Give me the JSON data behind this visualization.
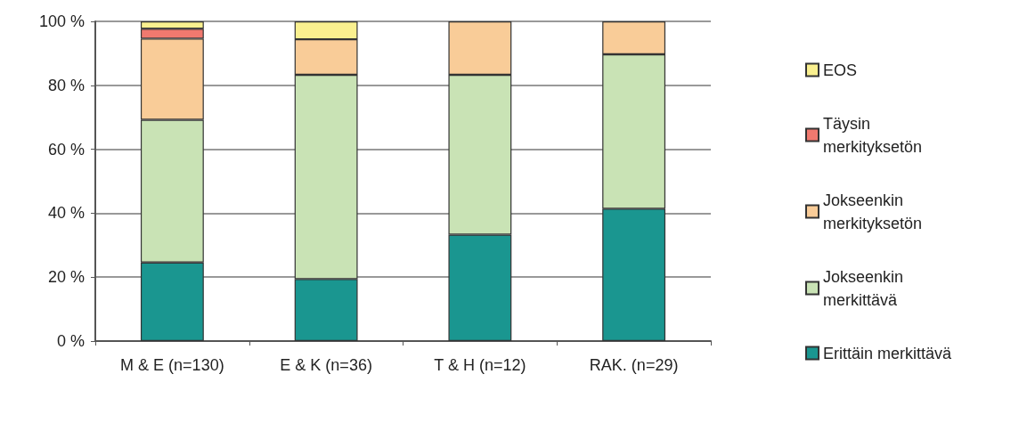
{
  "chart_data": {
    "type": "bar",
    "stacked": true,
    "categories": [
      "M & E (n=130)",
      "E & K (n=36)",
      "T & H (n=12)",
      "RAK. (n=29)"
    ],
    "series": [
      {
        "name": "Erittäin merkittävä",
        "color": "#1a9690",
        "values": [
          24.6,
          19.4,
          33.3,
          41.4
        ]
      },
      {
        "name": "Jokseenkin merkittävä",
        "color": "#c9e3b5",
        "values": [
          44.6,
          63.9,
          50.0,
          48.3
        ]
      },
      {
        "name": "Jokseenkin merkityksetön",
        "color": "#f9cc98",
        "values": [
          25.4,
          11.1,
          16.7,
          10.3
        ]
      },
      {
        "name": "Täysin merkityksetön",
        "color": "#f0796f",
        "values": [
          3.1,
          0,
          0,
          0
        ]
      },
      {
        "name": "EOS",
        "color": "#faf08f",
        "values": [
          2.3,
          5.6,
          0,
          0
        ]
      }
    ],
    "ylim": [
      0,
      100
    ],
    "yticks": [
      {
        "value": 0,
        "label": "0 %"
      },
      {
        "value": 20,
        "label": "20 %"
      },
      {
        "value": 40,
        "label": "40 %"
      },
      {
        "value": 60,
        "label": "60 %"
      },
      {
        "value": 80,
        "label": "80 %"
      },
      {
        "value": 100,
        "label": "100 %"
      }
    ],
    "grid": "y",
    "legend": "right"
  }
}
